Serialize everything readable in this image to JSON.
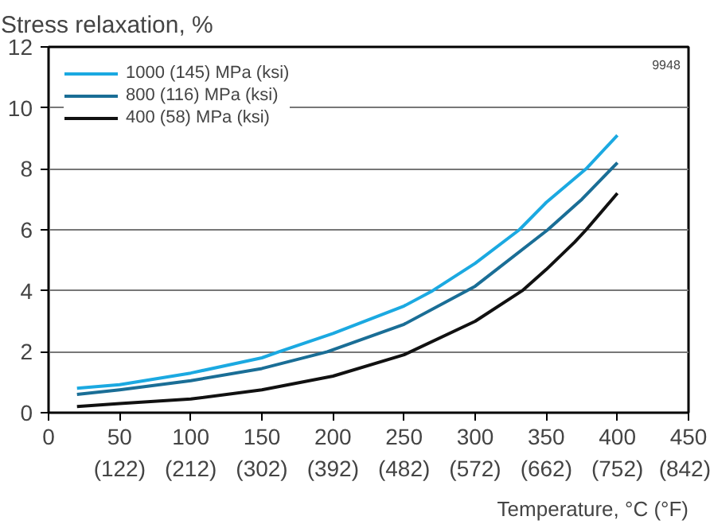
{
  "chart_data": {
    "type": "line",
    "ylabel": "Stress relaxation, %",
    "xlabel": "Temperature, °C (°F)",
    "annotations": [
      "9948"
    ],
    "xlim": [
      0,
      450
    ],
    "ylim": [
      0,
      12
    ],
    "xticks": [
      0,
      50,
      100,
      150,
      200,
      250,
      300,
      350,
      400,
      450
    ],
    "x2lim": [
      32,
      842
    ],
    "x2ticks": [
      {
        "value": 122,
        "label": "(122)"
      },
      {
        "value": 212,
        "label": "(212)"
      },
      {
        "value": 302,
        "label": "(302)"
      },
      {
        "value": 392,
        "label": "(392)"
      },
      {
        "value": 482,
        "label": "(482)"
      },
      {
        "value": 572,
        "label": "(572)"
      },
      {
        "value": 662,
        "label": "(662)"
      },
      {
        "value": 752,
        "label": "(752)"
      },
      {
        "value": 842,
        "label": "(842)"
      }
    ],
    "yticks": [
      0,
      2,
      4,
      6,
      8,
      10,
      12
    ],
    "grid": "y",
    "legend": "top left",
    "line_style": "solid",
    "series": [
      {
        "name": "1000 (145) MPa (ksi)",
        "color": "#1ba9e1",
        "x": [
          20,
          50,
          100,
          150,
          162,
          200,
          250,
          270,
          300,
          331,
          350,
          378,
          400
        ],
        "values": [
          0.8,
          0.92,
          1.3,
          1.8,
          2,
          2.6,
          3.5,
          4,
          4.9,
          6,
          6.9,
          8,
          9.1
        ]
      },
      {
        "name": "800 (116) MPa (ksi)",
        "color": "#1a6e96",
        "x": [
          20,
          50,
          100,
          150,
          196,
          250,
          294,
          300,
          351,
          375,
          400
        ],
        "values": [
          0.6,
          0.75,
          1.05,
          1.45,
          2,
          2.9,
          4,
          4.15,
          6,
          7,
          8.2
        ]
      },
      {
        "name": "400 (58) MPa (ksi)",
        "color": "#111111",
        "x": [
          20,
          50,
          100,
          150,
          200,
          250,
          300,
          333,
          350,
          370,
          378,
          400
        ],
        "values": [
          0.2,
          0.3,
          0.45,
          0.75,
          1.2,
          1.9,
          3.0,
          4,
          4.7,
          5.6,
          6,
          7.2
        ]
      }
    ]
  }
}
